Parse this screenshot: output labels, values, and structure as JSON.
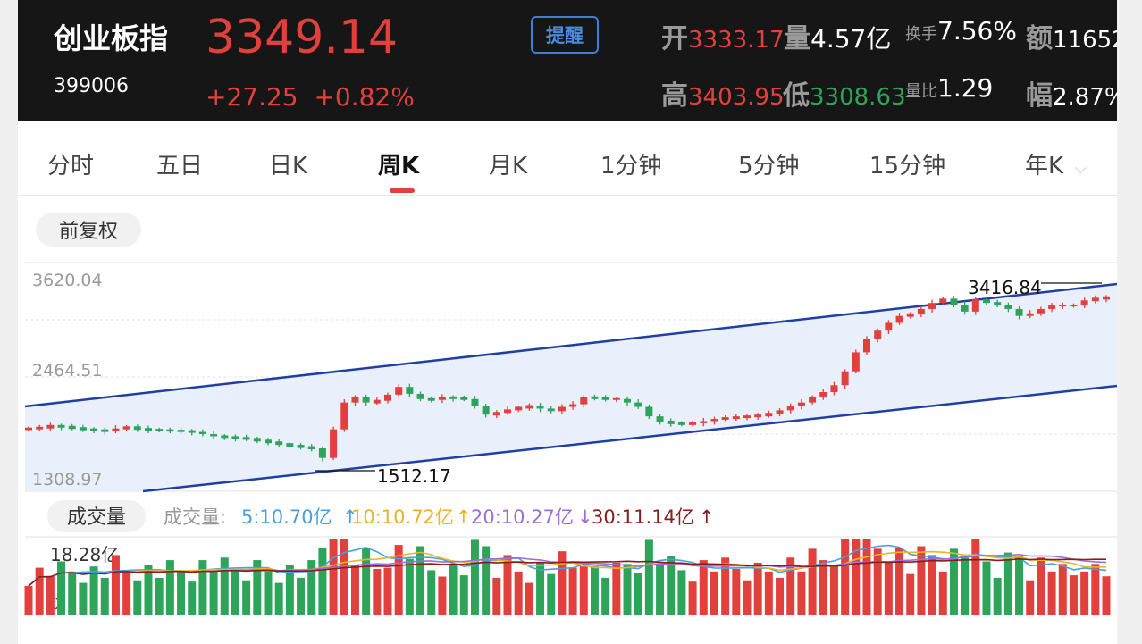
{
  "header": {
    "name": "创业板指",
    "code": "399006",
    "price": "3349.14",
    "change": "+27.25",
    "change_pct": "+0.82%",
    "alert_label": "提醒",
    "open_label": "开",
    "open_value": "3333.17",
    "volume_label": "量",
    "volume_value": "4.57亿",
    "turnover_label": "换手",
    "turnover_value": "7.56%",
    "amount_label": "额",
    "amount_value": "11652",
    "high_label": "高",
    "high_value": "3403.95",
    "low_label": "低",
    "low_value": "3308.63",
    "vol_ratio_label": "量比",
    "vol_ratio_value": "1.29",
    "amplitude_label": "幅",
    "amplitude_value": "2.87%"
  },
  "tabs": [
    "分时",
    "五日",
    "日K",
    "周K",
    "月K",
    "1分钟",
    "5分钟",
    "15分钟",
    "年K"
  ],
  "active_tab": "周K",
  "adjust_label": "前复权",
  "price_chart": {
    "y_labels": [
      "3620.04",
      "2464.51",
      "1308.97"
    ],
    "high_mark": "3416.84",
    "low_mark": "1512.17"
  },
  "volume_panel": {
    "label": "成交量",
    "legend_prefix": "成交量:",
    "ma5": "5:10.70亿",
    "ma10": "10:10.72亿",
    "ma20": "20:10.27亿",
    "ma30": "30:11.14亿",
    "max_label": "18.28亿",
    "zero_label": "0"
  },
  "colors": {
    "up": "#e2403d",
    "down": "#2ea45a",
    "channel": "#1f3fa6",
    "ma5": "#4a9fe0",
    "ma10": "#e8b52a",
    "ma20": "#9b6fd6",
    "ma30": "#8b1c1c"
  },
  "chart_data": {
    "type": "candlestick",
    "period": "weekly",
    "x_count": 100,
    "ylim": [
      1308.97,
      3620.04
    ],
    "candles_close": [
      1900,
      1910,
      1930,
      1920,
      1905,
      1890,
      1880,
      1870,
      1900,
      1915,
      1895,
      1885,
      1880,
      1875,
      1870,
      1860,
      1835,
      1810,
      1800,
      1790,
      1780,
      1760,
      1740,
      1720,
      1700,
      1685,
      1670,
      1560,
      1890,
      2200,
      2260,
      2200,
      2220,
      2290,
      2380,
      2300,
      2240,
      2230,
      2260,
      2250,
      2240,
      2160,
      2060,
      2080,
      2120,
      2140,
      2160,
      2130,
      2100,
      2150,
      2180,
      2260,
      2250,
      2240,
      2240,
      2200,
      2150,
      2040,
      1980,
      1960,
      1950,
      1960,
      1985,
      2010,
      2020,
      2030,
      2040,
      2050,
      2070,
      2110,
      2160,
      2200,
      2260,
      2320,
      2400,
      2560,
      2780,
      2930,
      3030,
      3120,
      3200,
      3220,
      3280,
      3350,
      3400,
      3330,
      3250,
      3390,
      3350,
      3330,
      3280,
      3200,
      3230,
      3280,
      3320,
      3320,
      3320,
      3380,
      3400,
      3416
    ],
    "volume_max": "18.28亿"
  }
}
